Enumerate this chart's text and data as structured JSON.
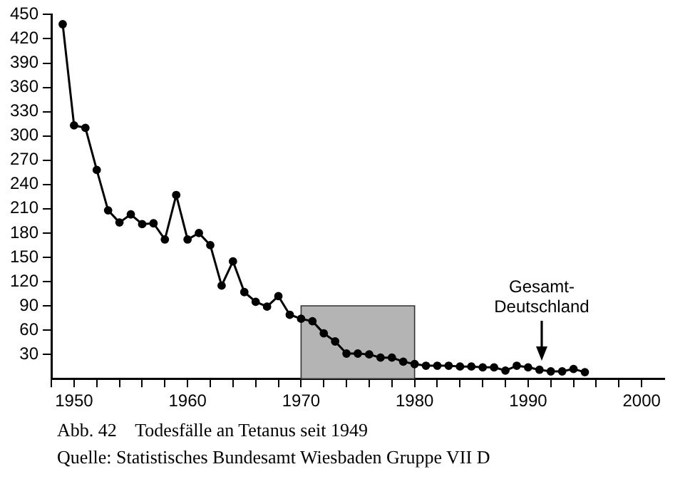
{
  "chart_data": {
    "type": "line",
    "title": "Abb. 42    Todesfälle an Tetanus seit 1949",
    "x": [
      1949,
      1950,
      1951,
      1952,
      1953,
      1954,
      1955,
      1956,
      1957,
      1958,
      1959,
      1960,
      1961,
      1962,
      1963,
      1964,
      1965,
      1966,
      1967,
      1968,
      1969,
      1970,
      1971,
      1972,
      1973,
      1974,
      1975,
      1976,
      1977,
      1978,
      1979,
      1980,
      1981,
      1982,
      1983,
      1984,
      1985,
      1986,
      1987,
      1988,
      1989,
      1990,
      1991,
      1992,
      1993,
      1994,
      1995
    ],
    "series": [
      {
        "color": "#000000",
        "values": [
          438,
          313,
          310,
          258,
          208,
          193,
          203,
          191,
          192,
          172,
          227,
          172,
          180,
          165,
          115,
          145,
          107,
          95,
          89,
          102,
          79,
          74,
          71,
          56,
          46,
          31,
          31,
          30,
          26,
          26,
          21,
          18,
          16,
          16,
          16,
          15,
          15,
          14,
          14,
          10,
          16,
          14,
          11,
          9,
          9,
          12,
          8
        ]
      }
    ],
    "xlim": [
      1948,
      2002
    ],
    "xticks": [
      {
        "value": 1948,
        "label": null
      },
      1950,
      {
        "value": 1952,
        "label": null
      },
      {
        "value": 1954,
        "label": null
      },
      {
        "value": 1956,
        "label": null
      },
      {
        "value": 1958,
        "label": null
      },
      1960,
      {
        "value": 1962,
        "label": null
      },
      {
        "value": 1964,
        "label": null
      },
      {
        "value": 1966,
        "label": null
      },
      {
        "value": 1968,
        "label": null
      },
      1970,
      {
        "value": 1972,
        "label": null
      },
      {
        "value": 1974,
        "label": null
      },
      {
        "value": 1976,
        "label": null
      },
      {
        "value": 1978,
        "label": null
      },
      1980,
      {
        "value": 1982,
        "label": null
      },
      {
        "value": 1984,
        "label": null
      },
      {
        "value": 1986,
        "label": null
      },
      {
        "value": 1988,
        "label": null
      },
      1990,
      {
        "value": 1992,
        "label": null
      },
      {
        "value": 1994,
        "label": null
      },
      {
        "value": 1996,
        "label": null
      },
      {
        "value": 1998,
        "label": null
      },
      2000
    ],
    "ylim": [
      0,
      450
    ],
    "yticks": [
      30,
      60,
      90,
      120,
      150,
      180,
      210,
      240,
      270,
      300,
      330,
      360,
      390,
      420,
      450
    ],
    "bands": [
      {
        "axis": "x",
        "from": 1970,
        "to": 1980,
        "color": "#b4b4b4"
      }
    ],
    "annotations": [
      "Gesamt-Deutschland",
      "Quelle: Statistisches Bundesamt Wiesbaden Gruppe VII D"
    ],
    "grid": false,
    "legend": false,
    "marker": "circle",
    "line_style": "solid"
  }
}
